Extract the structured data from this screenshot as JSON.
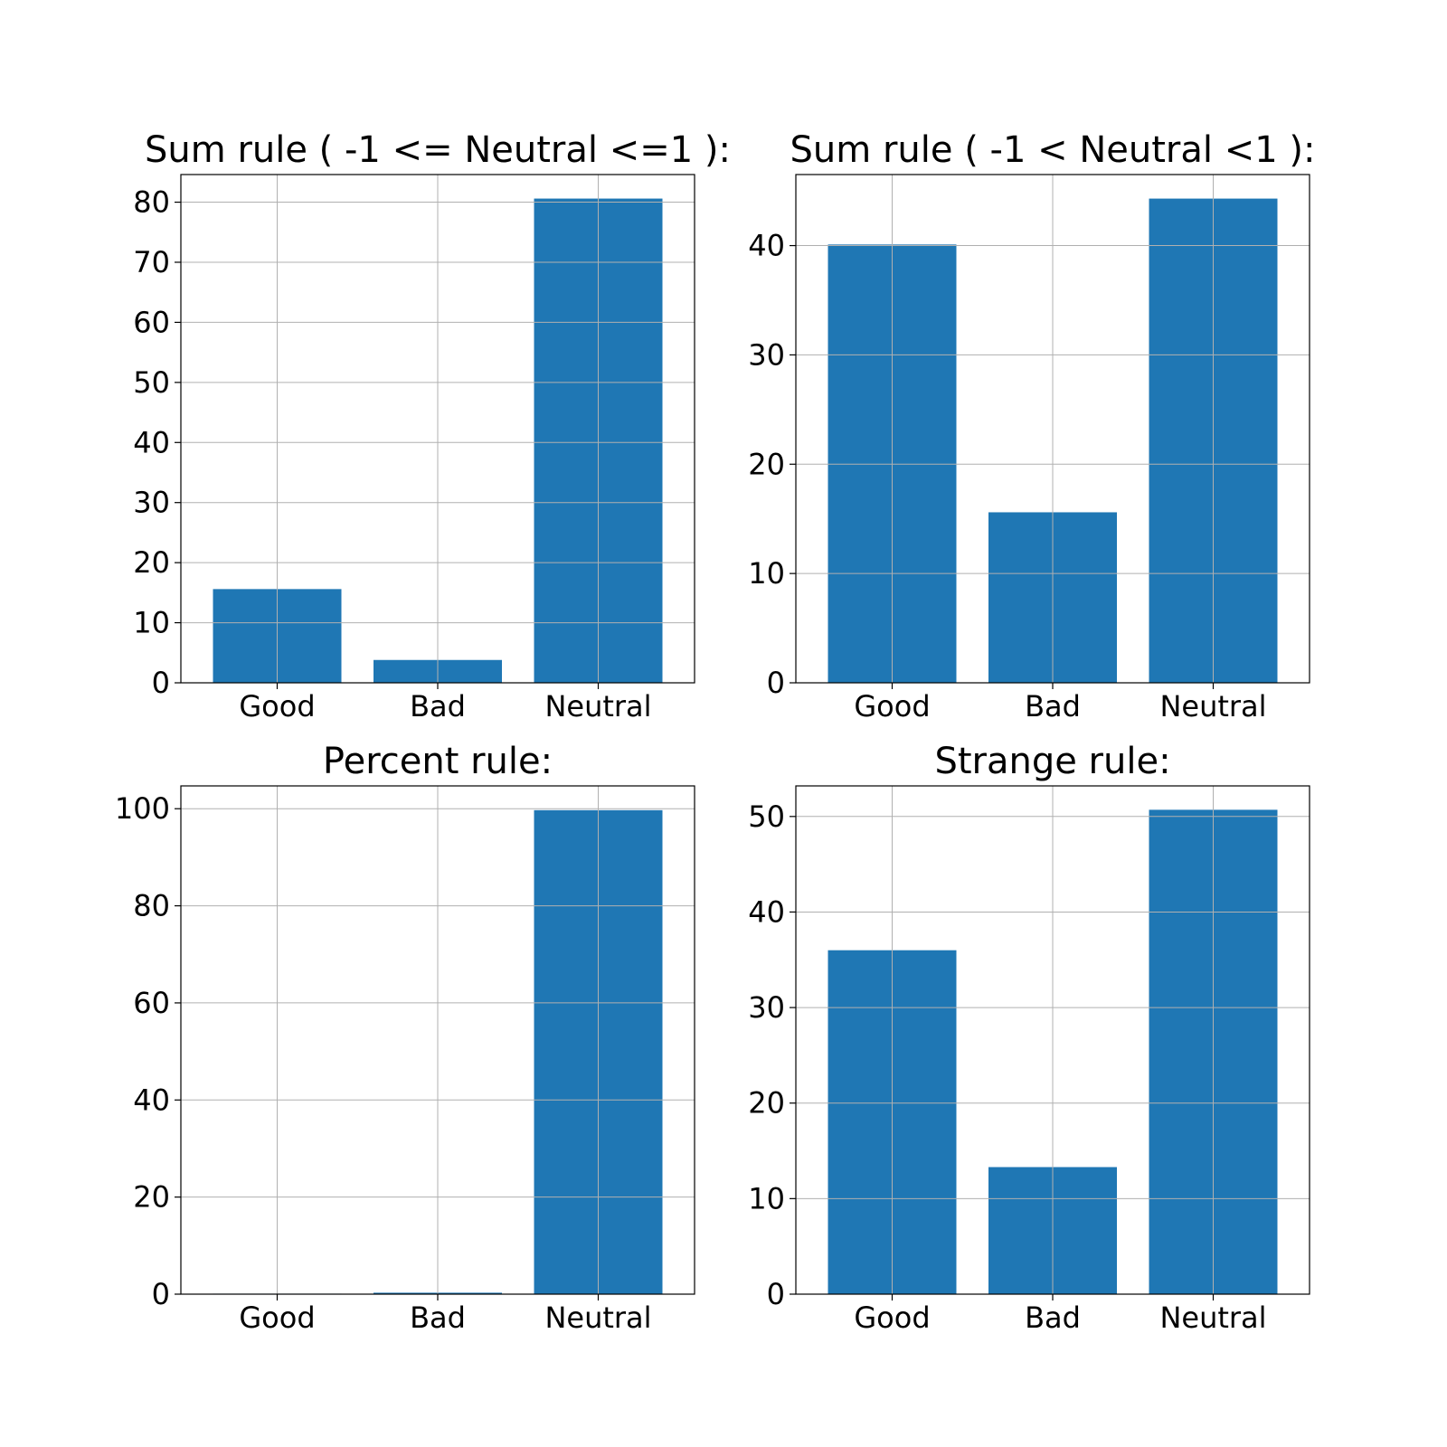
{
  "colors": {
    "bar": "#1f77b4",
    "grid": "#b0b0b0",
    "frame": "#000000"
  },
  "chart_data": [
    {
      "type": "bar",
      "title": "Sum rule ( -1 <= Neutral <=1 ):",
      "categories": [
        "Good",
        "Bad",
        "Neutral"
      ],
      "values": [
        15.6,
        3.8,
        80.6
      ],
      "xlabel": "",
      "ylabel": "",
      "ylim": [
        0,
        84.6
      ],
      "yticks": [
        0,
        10,
        20,
        30,
        40,
        50,
        60,
        70,
        80
      ],
      "grid": true,
      "legend": "none"
    },
    {
      "type": "bar",
      "title": "Sum rule ( -1 < Neutral <1 ):",
      "categories": [
        "Good",
        "Bad",
        "Neutral"
      ],
      "values": [
        40.1,
        15.6,
        44.3
      ],
      "xlabel": "",
      "ylabel": "",
      "ylim": [
        0,
        46.5
      ],
      "yticks": [
        0,
        10,
        20,
        30,
        40
      ],
      "grid": true,
      "legend": "none"
    },
    {
      "type": "bar",
      "title": "Percent rule:",
      "categories": [
        "Good",
        "Bad",
        "Neutral"
      ],
      "values": [
        0.1,
        0.3,
        99.7
      ],
      "xlabel": "",
      "ylabel": "",
      "ylim": [
        0,
        104.7
      ],
      "yticks": [
        0,
        20,
        40,
        60,
        80,
        100
      ],
      "grid": true,
      "legend": "none"
    },
    {
      "type": "bar",
      "title": "Strange rule:",
      "categories": [
        "Good",
        "Bad",
        "Neutral"
      ],
      "values": [
        36.0,
        13.3,
        50.7
      ],
      "xlabel": "",
      "ylabel": "",
      "ylim": [
        0,
        53.2
      ],
      "yticks": [
        0,
        10,
        20,
        30,
        40,
        50
      ],
      "grid": true,
      "legend": "none"
    }
  ]
}
